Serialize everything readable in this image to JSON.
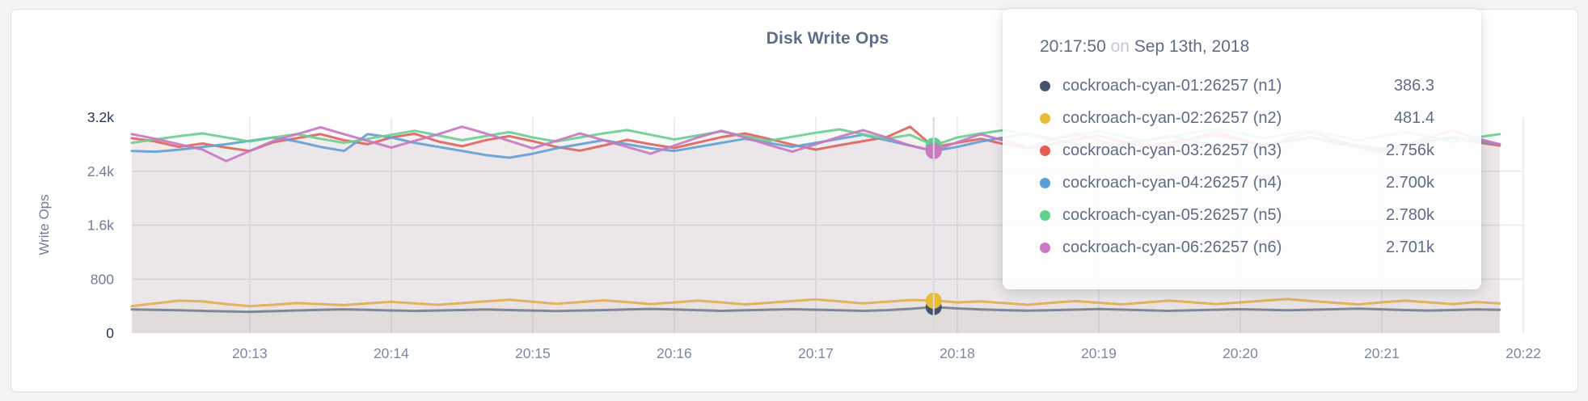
{
  "header": {
    "title": "Disk Write Ops"
  },
  "tooltip": {
    "time": "20:17:50",
    "connector": "on",
    "date": "Sep 13th, 2018"
  },
  "theme": {
    "page_background": "#F4F4F3",
    "card_background": "#FFFFFF",
    "title_color": "#5F6D89",
    "axis_label_color": "#6F7C97",
    "axis_tick_dark_color": "#28355A",
    "x_tick_color": "#7C88A0",
    "gridline_color": "#E8E8E7",
    "crosshair_color": "#D7D9DC"
  },
  "chart_data": {
    "type": "line",
    "title": "Disk Write Ops",
    "xlabel": "",
    "ylabel": "Write Ops",
    "ylim": [
      0,
      3200
    ],
    "grid": true,
    "legend_position": "tooltip-overlay",
    "x_ticks": [
      {
        "t": "20:13:00",
        "label": "20:13"
      },
      {
        "t": "20:14:00",
        "label": "20:14"
      },
      {
        "t": "20:15:00",
        "label": "20:15"
      },
      {
        "t": "20:16:00",
        "label": "20:16"
      },
      {
        "t": "20:17:00",
        "label": "20:17"
      },
      {
        "t": "20:18:00",
        "label": "20:18"
      },
      {
        "t": "20:19:00",
        "label": "20:19"
      },
      {
        "t": "20:20:00",
        "label": "20:20"
      },
      {
        "t": "20:21:00",
        "label": "20:21"
      },
      {
        "t": "20:22:00",
        "label": "20:22"
      }
    ],
    "y_ticks": [
      {
        "v": 0,
        "label": "0",
        "dark": true,
        "grid": false
      },
      {
        "v": 800,
        "label": "800",
        "dark": false,
        "grid": true
      },
      {
        "v": 1600,
        "label": "1.6k",
        "dark": false,
        "grid": true
      },
      {
        "v": 2400,
        "label": "2.4k",
        "dark": false,
        "grid": true
      },
      {
        "v": 3200,
        "label": "3.2k",
        "dark": true,
        "grid": false
      }
    ],
    "times": [
      "20:12:10",
      "20:12:20",
      "20:12:30",
      "20:12:40",
      "20:12:50",
      "20:13:00",
      "20:13:10",
      "20:13:20",
      "20:13:30",
      "20:13:40",
      "20:13:50",
      "20:14:00",
      "20:14:10",
      "20:14:20",
      "20:14:30",
      "20:14:40",
      "20:14:50",
      "20:15:00",
      "20:15:10",
      "20:15:20",
      "20:15:30",
      "20:15:40",
      "20:15:50",
      "20:16:00",
      "20:16:10",
      "20:16:20",
      "20:16:30",
      "20:16:40",
      "20:16:50",
      "20:17:00",
      "20:17:10",
      "20:17:20",
      "20:17:30",
      "20:17:40",
      "20:17:50",
      "20:18:00",
      "20:18:10",
      "20:18:20",
      "20:18:30",
      "20:18:40",
      "20:18:50",
      "20:19:00",
      "20:19:10",
      "20:19:20",
      "20:19:30",
      "20:19:40",
      "20:19:50",
      "20:20:00",
      "20:20:10",
      "20:20:20",
      "20:20:30",
      "20:20:40",
      "20:20:50",
      "20:21:00",
      "20:21:10",
      "20:21:20",
      "20:21:30",
      "20:21:40",
      "20:21:50"
    ],
    "hover": {
      "index": 34,
      "time": "20:17:50",
      "date": "Sep 13th, 2018"
    },
    "series": [
      {
        "name": "cockroach-cyan-01:26257 (n1)",
        "node": "n1",
        "color": "#76808F",
        "dot_color": "#46536F",
        "tooltip_value": "386.3",
        "values": [
          350,
          345,
          338,
          330,
          322,
          315,
          325,
          335,
          345,
          352,
          345,
          336,
          328,
          335,
          342,
          350,
          342,
          334,
          326,
          334,
          342,
          350,
          358,
          350,
          340,
          330,
          338,
          346,
          354,
          346,
          338,
          330,
          340,
          360,
          386.3,
          365,
          350,
          340,
          332,
          340,
          348,
          356,
          348,
          338,
          330,
          338,
          346,
          354,
          346,
          338,
          346,
          354,
          362,
          352,
          342,
          334,
          342,
          350,
          345
        ]
      },
      {
        "name": "cockroach-cyan-02:26257 (n2)",
        "node": "n2",
        "color": "#DFAF54",
        "dot_color": "#EABB37",
        "tooltip_value": "481.4",
        "values": [
          400,
          440,
          480,
          470,
          430,
          400,
          420,
          445,
          430,
          415,
          440,
          465,
          440,
          420,
          445,
          470,
          495,
          465,
          435,
          460,
          485,
          460,
          430,
          455,
          480,
          455,
          425,
          450,
          475,
          500,
          470,
          440,
          465,
          490,
          481.4,
          455,
          470,
          445,
          420,
          450,
          475,
          450,
          425,
          455,
          480,
          455,
          430,
          455,
          480,
          505,
          475,
          450,
          425,
          455,
          480,
          455,
          430,
          460,
          440
        ]
      },
      {
        "name": "cockroach-cyan-03:26257 (n3)",
        "node": "n3",
        "color": "#DC6660",
        "dot_color": "#E05C55",
        "tooltip_value": "2.756k",
        "values": [
          2890,
          2840,
          2760,
          2810,
          2750,
          2700,
          2830,
          2890,
          2950,
          2860,
          2800,
          2900,
          2955,
          2840,
          2770,
          2860,
          2920,
          2845,
          2760,
          2705,
          2780,
          2865,
          2800,
          2745,
          2825,
          2905,
          2960,
          2880,
          2795,
          2720,
          2785,
          2845,
          2905,
          3060,
          2756,
          2820,
          2880,
          2800,
          2740,
          2805,
          2865,
          2925,
          2840,
          2765,
          2825,
          2885,
          2940,
          2860,
          2780,
          2845,
          2905,
          2820,
          2760,
          2705,
          2765,
          2845,
          2900,
          2830,
          2780
        ]
      },
      {
        "name": "cockroach-cyan-04:26257 (n4)",
        "node": "n4",
        "color": "#649FD3",
        "dot_color": "#55A0DB",
        "tooltip_value": "2.700k",
        "values": [
          2700,
          2690,
          2720,
          2760,
          2800,
          2850,
          2900,
          2840,
          2760,
          2700,
          2950,
          2900,
          2820,
          2760,
          2700,
          2640,
          2600,
          2660,
          2740,
          2800,
          2860,
          2800,
          2740,
          2700,
          2760,
          2820,
          2880,
          2820,
          2760,
          2820,
          2880,
          2940,
          2860,
          2780,
          2700,
          2760,
          2840,
          2900,
          2960,
          2880,
          2800,
          2740,
          2800,
          2860,
          2920,
          2850,
          2780,
          2720,
          2780,
          2840,
          2900,
          2840,
          2780,
          2730,
          2790,
          2850,
          2910,
          2850,
          2800
        ]
      },
      {
        "name": "cockroach-cyan-05:26257 (n5)",
        "node": "n5",
        "color": "#6FCD92",
        "dot_color": "#5ED28E",
        "tooltip_value": "2.780k",
        "values": [
          2820,
          2870,
          2920,
          2960,
          2900,
          2840,
          2900,
          2950,
          2880,
          2820,
          2880,
          2940,
          3000,
          2930,
          2860,
          2920,
          2980,
          2900,
          2840,
          2900,
          2960,
          3010,
          2940,
          2870,
          2930,
          2990,
          2920,
          2850,
          2910,
          2970,
          3020,
          2950,
          2880,
          2940,
          2780,
          2900,
          2960,
          3010,
          2940,
          2870,
          2930,
          2990,
          2920,
          2850,
          2910,
          2970,
          3030,
          2960,
          2890,
          2950,
          3000,
          2930,
          2860,
          2920,
          2980,
          2910,
          2840,
          2900,
          2950
        ]
      },
      {
        "name": "cockroach-cyan-06:26257 (n6)",
        "node": "n6",
        "color": "#C77BC0",
        "dot_color": "#CB78C1",
        "tooltip_value": "2.701k",
        "values": [
          2950,
          2880,
          2800,
          2720,
          2550,
          2700,
          2850,
          2950,
          3050,
          2950,
          2850,
          2750,
          2850,
          2950,
          3060,
          2960,
          2850,
          2740,
          2850,
          2960,
          2860,
          2760,
          2660,
          2780,
          2900,
          3000,
          2900,
          2790,
          2690,
          2800,
          2910,
          3010,
          2900,
          2780,
          2701,
          2830,
          2950,
          2850,
          2750,
          2860,
          2960,
          2860,
          2750,
          2650,
          2770,
          2890,
          2990,
          2880,
          2770,
          2880,
          2980,
          2870,
          2760,
          2670,
          2790,
          2900,
          3000,
          2890,
          2800
        ]
      }
    ]
  }
}
